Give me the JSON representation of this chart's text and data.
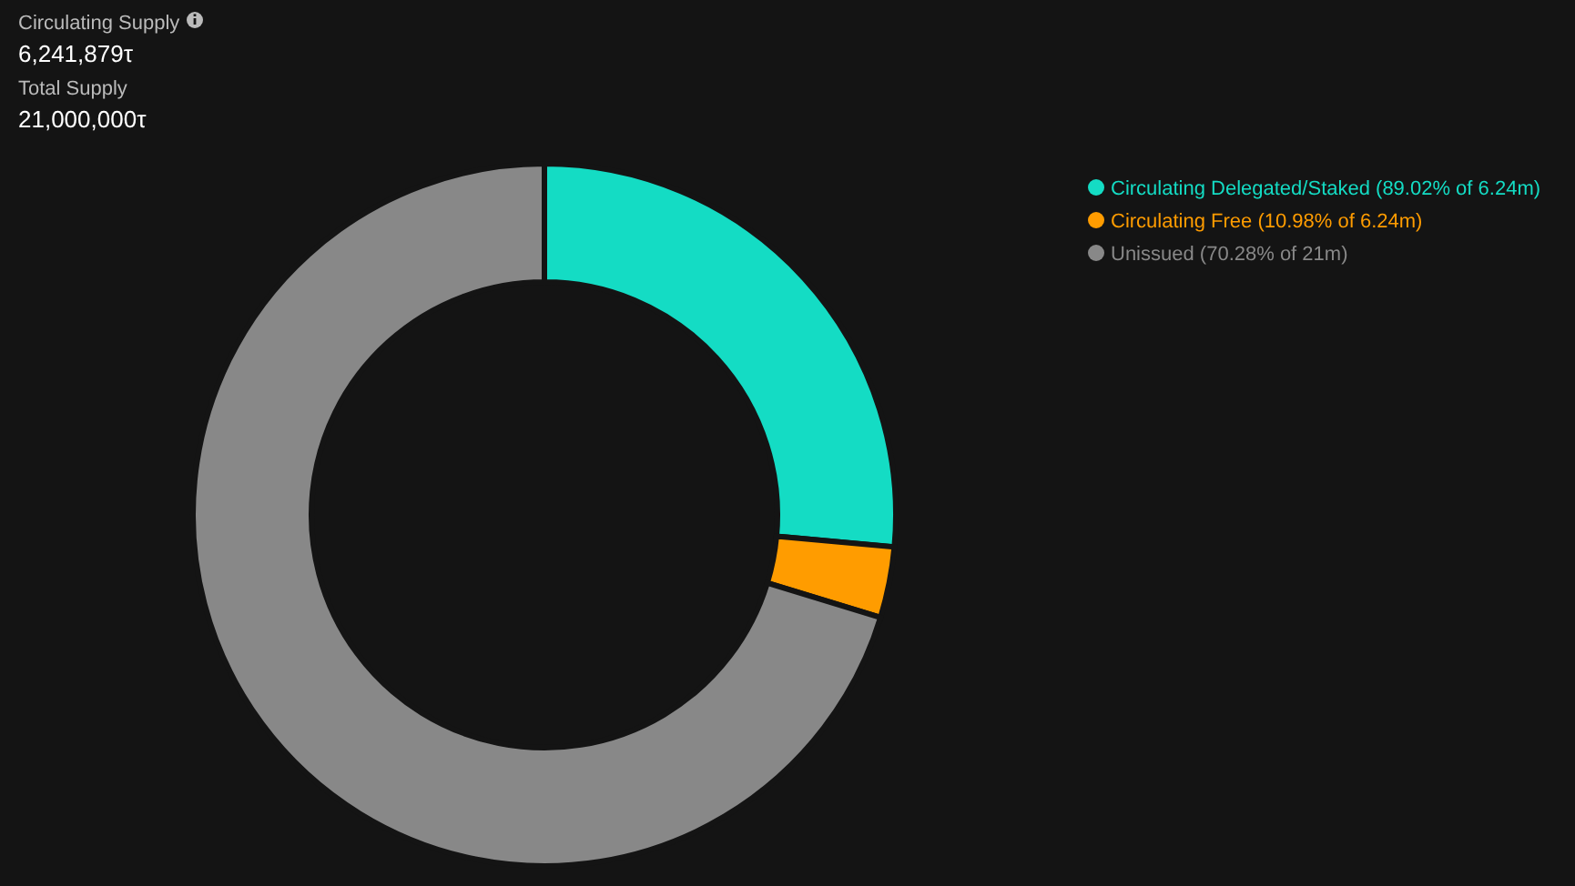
{
  "chart_data": {
    "type": "donut",
    "categories": [
      "Circulating Delegated/Staked (89.02% of 6.24m)",
      "Circulating Free (10.98% of 6.24m)",
      "Unissued (70.28% of 21m)"
    ],
    "values": [
      26.46,
      3.26,
      70.28
    ],
    "colors": [
      "#14dcc4",
      "#ff9c00",
      "#888888"
    ],
    "legend": "top right",
    "annotations": [
      "Circulating Supply",
      "6,241,879τ",
      "Total Supply",
      "21,000,000τ"
    ]
  }
}
